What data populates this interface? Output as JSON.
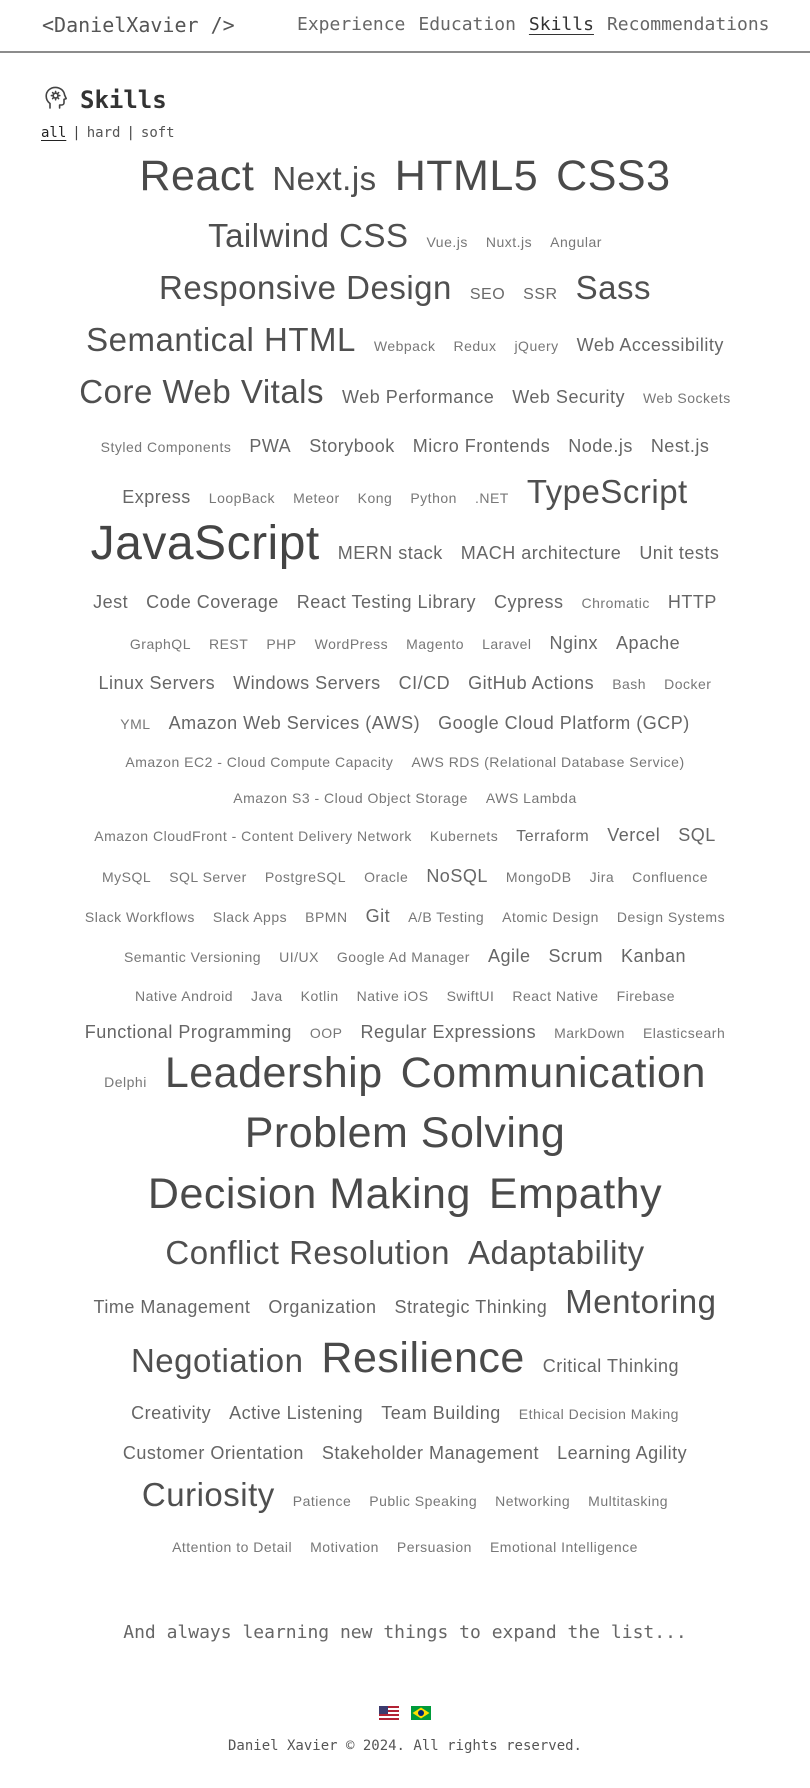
{
  "header": {
    "logo": "<DanielXavier />",
    "nav": [
      "Experience",
      "Education",
      "Skills",
      "Recommendations"
    ],
    "active_nav": "Skills"
  },
  "skills": {
    "title": "Skills",
    "icon": "head-brain-icon",
    "filters": [
      "all",
      "hard",
      "soft"
    ],
    "active_filter": "all",
    "separator": "|"
  },
  "cloud_rows": [
    [
      [
        "React",
        7
      ],
      [
        "Next.js",
        6
      ],
      [
        "HTML5",
        7
      ],
      [
        "CSS3",
        7
      ]
    ],
    [
      [
        "Tailwind CSS",
        6
      ],
      [
        "Vue.js",
        1
      ],
      [
        "Nuxt.js",
        1
      ],
      [
        "Angular",
        1
      ]
    ],
    [
      [
        "Responsive Design",
        6
      ],
      [
        "SEO",
        2
      ],
      [
        "SSR",
        2
      ],
      [
        "Sass",
        6
      ]
    ],
    [
      [
        "Semantical HTML",
        6
      ],
      [
        "Webpack",
        1
      ],
      [
        "Redux",
        1
      ],
      [
        "jQuery",
        1
      ],
      [
        "Web Accessibility",
        3
      ]
    ],
    [
      [
        "Core Web Vitals",
        6
      ],
      [
        "Web Performance",
        3
      ],
      [
        "Web Security",
        3
      ],
      [
        "Web Sockets",
        1
      ]
    ],
    [
      [
        "Styled Components",
        1
      ],
      [
        "PWA",
        3
      ],
      [
        "Storybook",
        3
      ],
      [
        "Micro Frontends",
        3
      ],
      [
        "Node.js",
        3
      ],
      [
        "Nest.js",
        3
      ]
    ],
    [
      [
        "Express",
        3
      ],
      [
        "LoopBack",
        1
      ],
      [
        "Meteor",
        1
      ],
      [
        "Kong",
        1
      ],
      [
        "Python",
        1
      ],
      [
        ".NET",
        1
      ],
      [
        "TypeScript",
        6
      ]
    ],
    [
      [
        "JavaScript",
        8
      ],
      [
        "MERN stack",
        3
      ],
      [
        "MACH architecture",
        3
      ],
      [
        "Unit tests",
        3
      ]
    ],
    [
      [
        "Jest",
        3
      ],
      [
        "Code Coverage",
        3
      ],
      [
        "React Testing Library",
        3
      ],
      [
        "Cypress",
        3
      ],
      [
        "Chromatic",
        1
      ],
      [
        "HTTP",
        3
      ]
    ],
    [
      [
        "GraphQL",
        1
      ],
      [
        "REST",
        1
      ],
      [
        "PHP",
        1
      ],
      [
        "WordPress",
        1
      ],
      [
        "Magento",
        1
      ],
      [
        "Laravel",
        1
      ],
      [
        "Nginx",
        3
      ],
      [
        "Apache",
        3
      ]
    ],
    [
      [
        "Linux Servers",
        3
      ],
      [
        "Windows Servers",
        3
      ],
      [
        "CI/CD",
        3
      ],
      [
        "GitHub Actions",
        3
      ],
      [
        "Bash",
        1
      ],
      [
        "Docker",
        1
      ]
    ],
    [
      [
        "YML",
        1
      ],
      [
        "Amazon Web Services (AWS)",
        3
      ],
      [
        "Google Cloud Platform (GCP)",
        3
      ]
    ],
    [
      [
        "Amazon EC2 - Cloud Compute Capacity",
        1
      ],
      [
        "AWS RDS (Relational Database Service)",
        1
      ]
    ],
    [
      [
        "Amazon S3 - Cloud Object Storage",
        1
      ],
      [
        "AWS Lambda",
        1
      ]
    ],
    [
      [
        "Amazon CloudFront - Content Delivery Network",
        1
      ],
      [
        "Kubernets",
        1
      ],
      [
        "Terraform",
        2
      ],
      [
        "Vercel",
        3
      ],
      [
        "SQL",
        3
      ]
    ],
    [
      [
        "MySQL",
        1
      ],
      [
        "SQL Server",
        1
      ],
      [
        "PostgreSQL",
        1
      ],
      [
        "Oracle",
        1
      ],
      [
        "NoSQL",
        3
      ],
      [
        "MongoDB",
        1
      ],
      [
        "Jira",
        1
      ],
      [
        "Confluence",
        1
      ]
    ],
    [
      [
        "Slack Workflows",
        1
      ],
      [
        "Slack Apps",
        1
      ],
      [
        "BPMN",
        1
      ],
      [
        "Git",
        3
      ],
      [
        "A/B Testing",
        1
      ],
      [
        "Atomic Design",
        1
      ],
      [
        "Design Systems",
        1
      ]
    ],
    [
      [
        "Semantic Versioning",
        1
      ],
      [
        "UI/UX",
        1
      ],
      [
        "Google Ad Manager",
        1
      ],
      [
        "Agile",
        3
      ],
      [
        "Scrum",
        3
      ],
      [
        "Kanban",
        3
      ]
    ],
    [
      [
        "Native Android",
        1
      ],
      [
        "Java",
        1
      ],
      [
        "Kotlin",
        1
      ],
      [
        "Native iOS",
        1
      ],
      [
        "SwiftUI",
        1
      ],
      [
        "React Native",
        1
      ],
      [
        "Firebase",
        1
      ]
    ],
    [
      [
        "Functional Programming",
        3
      ],
      [
        "OOP",
        1
      ],
      [
        "Regular Expressions",
        3
      ],
      [
        "MarkDown",
        1
      ],
      [
        "Elasticsearh",
        1
      ]
    ],
    [
      [
        "Delphi",
        1
      ],
      [
        "Leadership",
        7
      ],
      [
        "Communication",
        7
      ]
    ],
    [
      [
        "Problem Solving",
        7
      ]
    ],
    [
      [
        "Decision Making",
        7
      ],
      [
        "Empathy",
        7
      ]
    ],
    [
      [
        "Conflict Resolution",
        6
      ],
      [
        "Adaptability",
        6
      ]
    ],
    [
      [
        "Time Management",
        3
      ],
      [
        "Organization",
        3
      ],
      [
        "Strategic Thinking",
        3
      ],
      [
        "Mentoring",
        6
      ]
    ],
    [
      [
        "Negotiation",
        6
      ],
      [
        "Resilience",
        7
      ],
      [
        "Critical Thinking",
        3
      ]
    ],
    [
      [
        "Creativity",
        3
      ],
      [
        "Active Listening",
        3
      ],
      [
        "Team Building",
        3
      ],
      [
        "Ethical Decision Making",
        1
      ]
    ],
    [
      [
        "Customer Orientation",
        3
      ],
      [
        "Stakeholder Management",
        3
      ],
      [
        "Learning Agility",
        3
      ]
    ],
    [
      [
        "Curiosity",
        6
      ],
      [
        "Patience",
        1
      ],
      [
        "Public Speaking",
        1
      ],
      [
        "Networking",
        1
      ],
      [
        "Multitasking",
        1
      ]
    ],
    [
      [
        "Attention to Detail",
        1
      ],
      [
        "Motivation",
        1
      ],
      [
        "Persuasion",
        1
      ],
      [
        "Emotional Intelligence",
        1
      ]
    ]
  ],
  "tagline": "And always learning new things to expand the list...",
  "footer": {
    "flags": [
      "us-flag-icon",
      "brazil-flag-icon"
    ],
    "copyright": "Daniel Xavier © 2024. All rights reserved."
  }
}
